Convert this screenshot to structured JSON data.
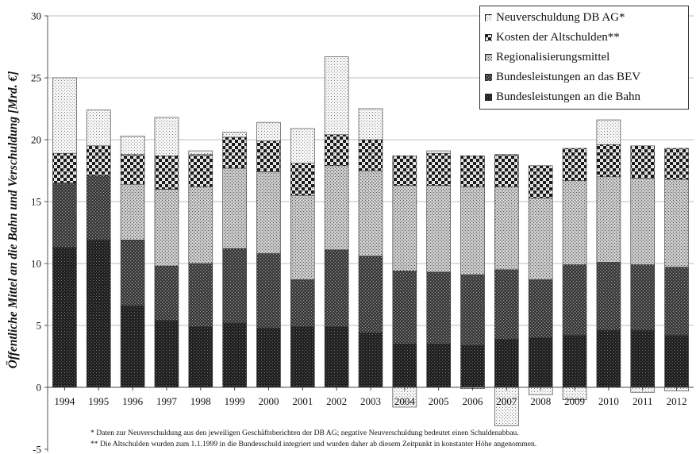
{
  "chart_data": {
    "type": "bar",
    "stacked": true,
    "ylabel": "Öffentliche Mittel an die Bahn und Verschuldung [Mrd. €]",
    "xlabel": "",
    "ylim": [
      -5,
      30
    ],
    "yticks": [
      -5,
      0,
      5,
      10,
      15,
      20,
      25,
      30
    ],
    "grid": true,
    "legend_position": "top-right",
    "categories": [
      "1994",
      "1995",
      "1996",
      "1997",
      "1998",
      "1999",
      "2000",
      "2001",
      "2002",
      "2003",
      "2004",
      "2005",
      "2006",
      "2007",
      "2008",
      "2009",
      "2010",
      "2011",
      "2012"
    ],
    "series": [
      {
        "name": "Bundesleistungen an die Bahn",
        "pattern": "dark-dots",
        "values": [
          11.3,
          11.9,
          6.6,
          5.4,
          4.9,
          5.2,
          4.8,
          4.9,
          4.9,
          4.4,
          3.5,
          3.5,
          3.4,
          3.9,
          4.0,
          4.2,
          4.6,
          4.6,
          4.2
        ]
      },
      {
        "name": "Bundesleistungen an das BEV",
        "pattern": "dark-mesh",
        "values": [
          5.2,
          5.2,
          5.3,
          4.4,
          5.1,
          6.0,
          6.0,
          3.8,
          6.2,
          6.2,
          5.9,
          5.8,
          5.7,
          5.6,
          4.7,
          5.7,
          5.5,
          5.3,
          5.5
        ]
      },
      {
        "name": "Regionalisierungsmittel",
        "pattern": "grey-dots",
        "values": [
          0.0,
          0.0,
          4.5,
          6.2,
          6.2,
          6.5,
          6.6,
          6.8,
          6.8,
          6.9,
          6.9,
          7.0,
          7.1,
          6.7,
          6.6,
          6.8,
          6.9,
          7.0,
          7.1
        ]
      },
      {
        "name": "Kosten der Altschulden**",
        "pattern": "checker",
        "values": [
          2.4,
          2.4,
          2.4,
          2.7,
          2.6,
          2.5,
          2.5,
          2.6,
          2.5,
          2.5,
          2.4,
          2.6,
          2.5,
          2.6,
          2.6,
          2.6,
          2.6,
          2.6,
          2.5
        ]
      },
      {
        "name": "Neuverschuldung DB AG*",
        "pattern": "light-dots",
        "values": [
          6.1,
          2.9,
          1.5,
          3.1,
          0.3,
          0.4,
          1.5,
          2.8,
          6.3,
          2.5,
          -1.6,
          0.2,
          -0.1,
          -3.1,
          -0.6,
          -1.0,
          2.0,
          -0.4,
          -0.3
        ]
      }
    ],
    "footnotes": [
      "*    Daten zur Neuverschuldung aus den jeweiligen Geschäftsberichten der DB AG; negative Neuverschuldung bedeutet einen Schuldenabbau.",
      "**  Die Altschulden wurden zum 1.1.1999 in die Bundesschuld integriert und wurden daher ab diesem Zeitpunkt in konstanter Höhe angenommen."
    ]
  }
}
